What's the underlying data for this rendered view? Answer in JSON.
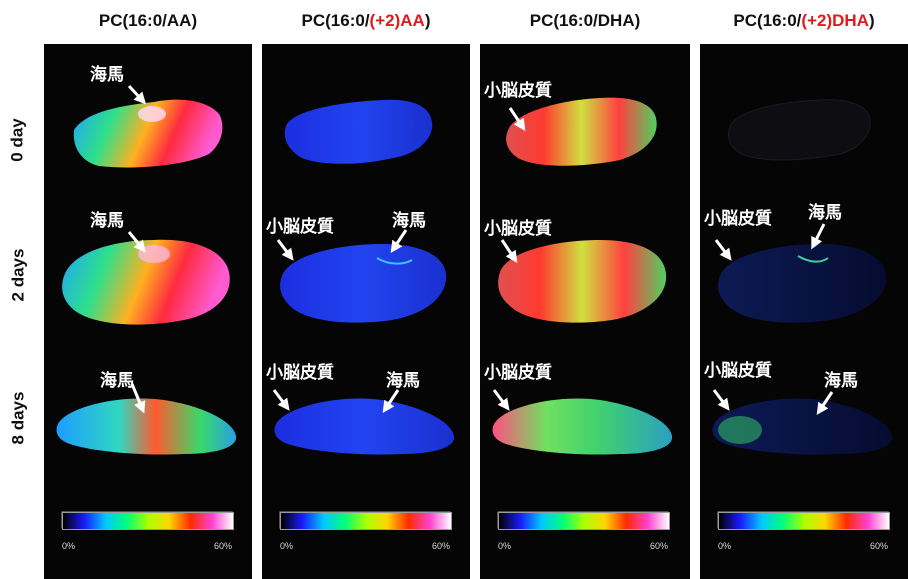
{
  "columns": [
    {
      "title_pre": "PC(16:0/",
      "title_red": "",
      "title_post": "AA)",
      "bar_colors": [
        "#000000",
        "#1a1aff",
        "#00c8ff",
        "#00ff7a",
        "#aaff00",
        "#ffd400",
        "#ff2a00",
        "#ff40d0",
        "#ffffff"
      ],
      "tick_lo": "0%",
      "tick_hi": "60%"
    },
    {
      "title_pre": "PC(16:0/",
      "title_red": "(+2)AA",
      "title_post": ")",
      "bar_colors": [
        "#000000",
        "#1a1aff",
        "#00c8ff",
        "#00ff7a",
        "#aaff00",
        "#ffd400",
        "#ff2a00",
        "#ff40d0",
        "#ffffff"
      ],
      "tick_lo": "0%",
      "tick_hi": "60%"
    },
    {
      "title_pre": "PC(16:0/DHA)",
      "title_red": "",
      "title_post": "",
      "bar_colors": [
        "#000000",
        "#1a1aff",
        "#00c8ff",
        "#00ff7a",
        "#aaff00",
        "#ffd400",
        "#ff2a00",
        "#ff40d0",
        "#ffffff"
      ],
      "tick_lo": "0%",
      "tick_hi": "60%"
    },
    {
      "title_pre": "PC(16:0/",
      "title_red": "(+2)DHA",
      "title_post": ")",
      "bar_colors": [
        "#000000",
        "#1a1aff",
        "#00c8ff",
        "#00ff7a",
        "#aaff00",
        "#ffd400",
        "#ff2a00",
        "#ff40d0",
        "#ffffff"
      ],
      "tick_lo": "0%",
      "tick_hi": "60%"
    }
  ],
  "rows": [
    "0 day",
    "2 days",
    "8 days"
  ],
  "annotations": {
    "hippocampus": "海馬",
    "cerebellar_cortex": "小脳皮質"
  },
  "colors": {
    "title_red": "#e01b1b",
    "panel_bg": "#050505",
    "label_text": "#ffffff"
  }
}
